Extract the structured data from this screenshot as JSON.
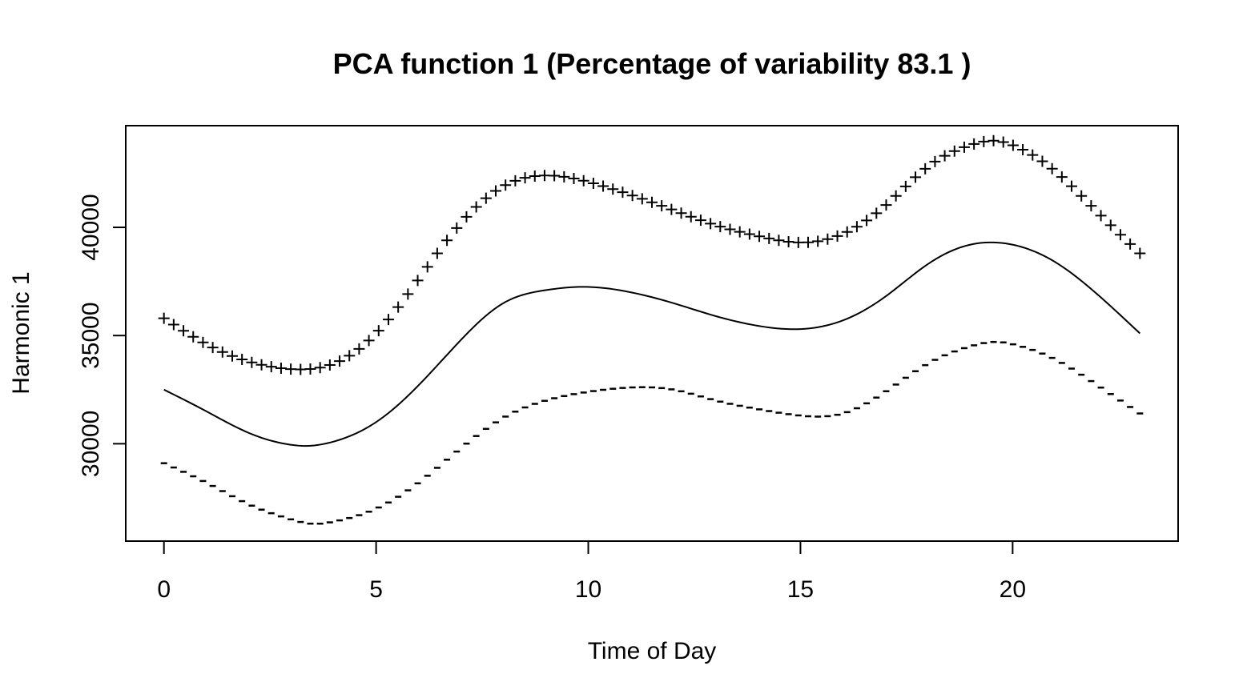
{
  "chart_data": {
    "type": "line",
    "title": "PCA function 1 (Percentage of variability 83.1 )",
    "xlabel": "Time of Day",
    "ylabel": "Harmonic 1",
    "xlim": [
      -0.9,
      23.9
    ],
    "ylim": [
      25500,
      44700
    ],
    "x_ticks": [
      0,
      5,
      10,
      15,
      20
    ],
    "y_ticks": [
      30000,
      35000,
      40000
    ],
    "grid": false,
    "legend": "none",
    "series": [
      {
        "style": "solid line",
        "x": [
          0,
          1,
          2,
          3,
          3.3,
          4,
          5,
          6,
          7,
          8,
          9,
          9.8,
          11,
          12,
          13,
          14,
          15,
          16,
          17,
          18,
          19,
          19.6,
          20,
          21,
          22,
          23
        ],
        "y": [
          32500,
          31500,
          30500,
          29950,
          29900,
          30100,
          31000,
          32700,
          34800,
          36500,
          37100,
          37250,
          37000,
          36500,
          35900,
          35450,
          35300,
          35700,
          36800,
          38300,
          39200,
          39300,
          39200,
          38400,
          36900,
          35100
        ]
      },
      {
        "style": "plus markers",
        "marker": "+",
        "x": [
          0,
          1,
          2,
          3,
          4,
          5,
          6,
          7,
          8,
          9,
          10,
          11,
          12,
          13,
          14,
          15,
          16,
          17,
          18,
          19,
          19.6,
          20,
          21,
          22,
          23
        ],
        "y": [
          35800,
          34600,
          33800,
          33450,
          33700,
          35100,
          37600,
          40200,
          41900,
          42400,
          42100,
          41500,
          40800,
          40100,
          39600,
          39300,
          39700,
          41000,
          42800,
          43800,
          44000,
          43800,
          42600,
          40700,
          38800
        ]
      },
      {
        "style": "minus markers",
        "marker": "-",
        "x": [
          0,
          1,
          2,
          3,
          3.5,
          4,
          5,
          6,
          7,
          8,
          9,
          10,
          11,
          12,
          13,
          14,
          15,
          16,
          17,
          18,
          19,
          19.7,
          20,
          21,
          22,
          23
        ],
        "y": [
          29100,
          28200,
          27200,
          26500,
          26300,
          26400,
          27000,
          28200,
          29800,
          31200,
          32000,
          32400,
          32600,
          32500,
          32000,
          31600,
          31300,
          31400,
          32400,
          33700,
          34500,
          34700,
          34600,
          33900,
          32700,
          31400
        ]
      }
    ]
  }
}
